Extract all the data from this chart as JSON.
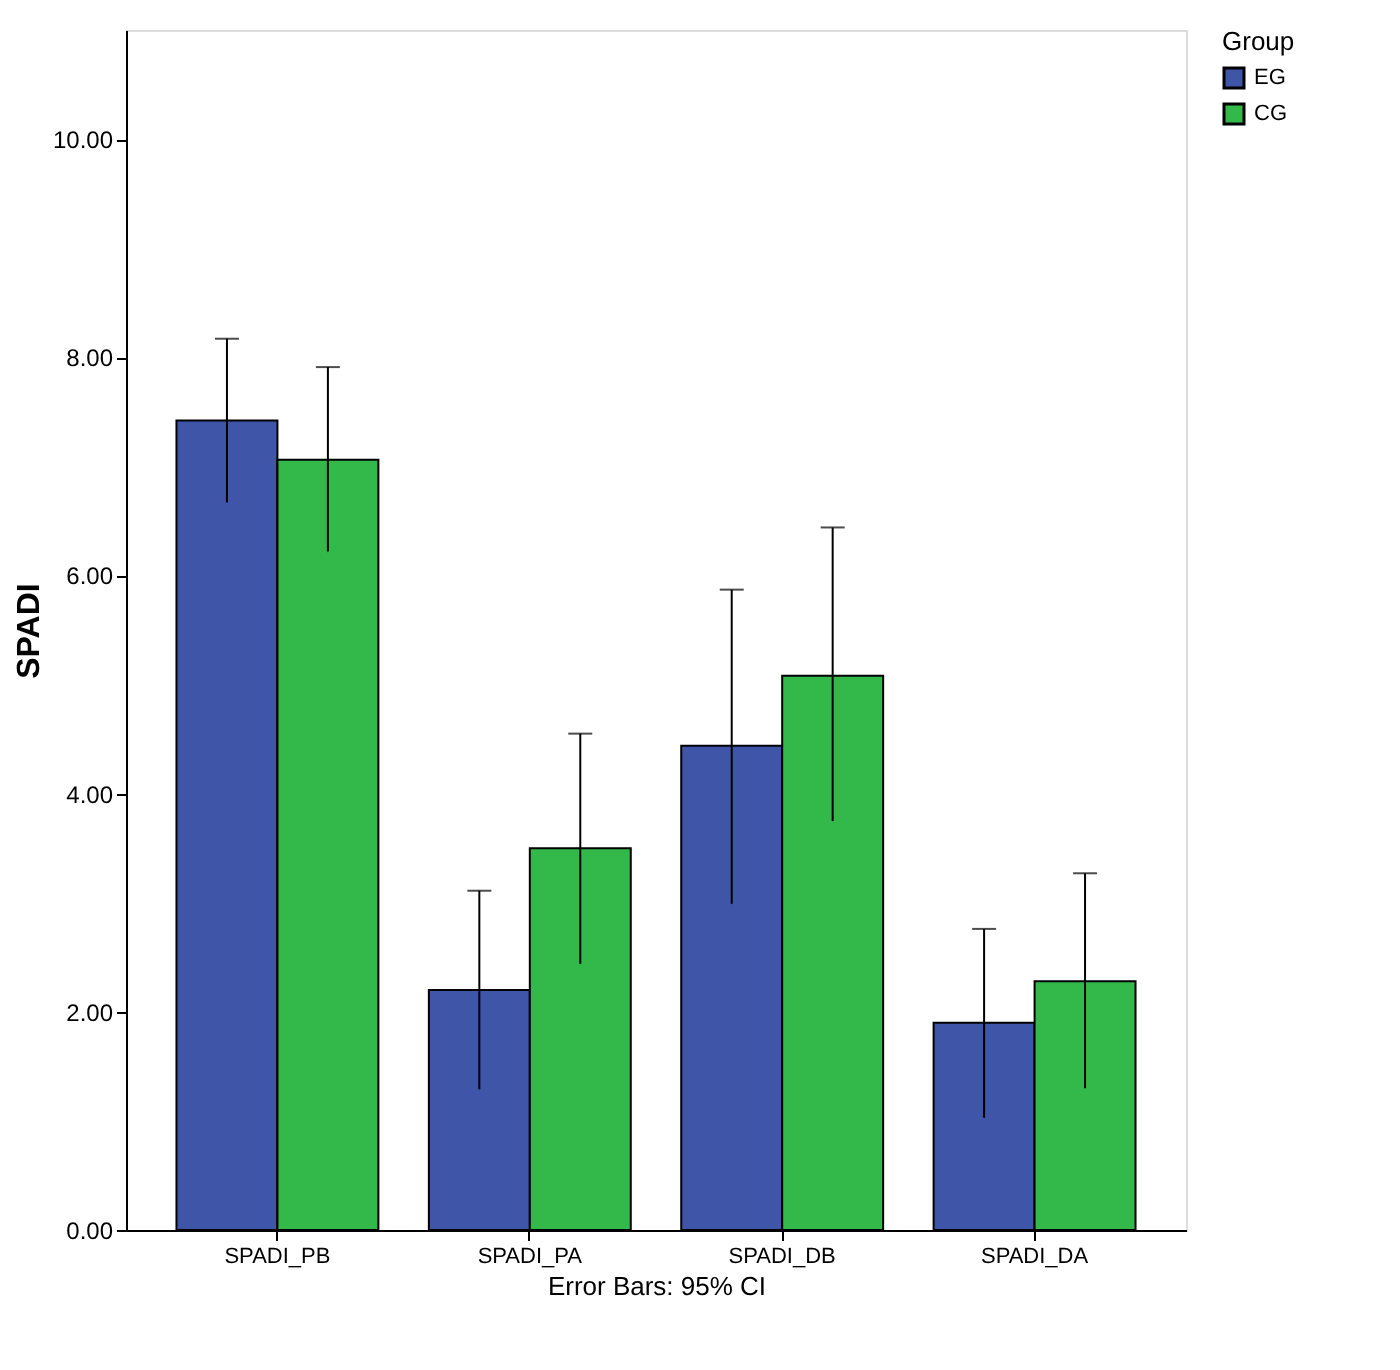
{
  "chart_data": {
    "type": "bar",
    "ylabel": "SPADI",
    "xlabel": "Error Bars: 95% CI",
    "legend_title": "Group",
    "legend": "top right",
    "grid": false,
    "categories": [
      "SPADI_PB",
      "SPADI_PA",
      "SPADI_DB",
      "SPADI_DA"
    ],
    "series": [
      {
        "name": "EG",
        "color": "#3f55a8",
        "values": [
          7.42,
          2.2,
          4.44,
          1.9
        ],
        "errors": [
          [
            6.67,
            8.17
          ],
          [
            1.29,
            3.11
          ],
          [
            2.99,
            5.87
          ],
          [
            1.03,
            2.76
          ]
        ]
      },
      {
        "name": "CG",
        "color": "#33b84a",
        "values": [
          7.06,
          3.5,
          5.08,
          2.28
        ],
        "errors": [
          [
            6.22,
            7.91
          ],
          [
            2.44,
            4.55
          ],
          [
            3.75,
            6.44
          ],
          [
            1.3,
            3.27
          ]
        ]
      }
    ],
    "ylim": [
      0,
      11
    ],
    "yticks": [
      {
        "value": 0,
        "label": "0.00"
      },
      {
        "value": 2,
        "label": "2.00"
      },
      {
        "value": 4,
        "label": "4.00"
      },
      {
        "value": 6,
        "label": "6.00"
      },
      {
        "value": 8,
        "label": "8.00"
      },
      {
        "value": 10,
        "label": "10.00"
      }
    ]
  }
}
